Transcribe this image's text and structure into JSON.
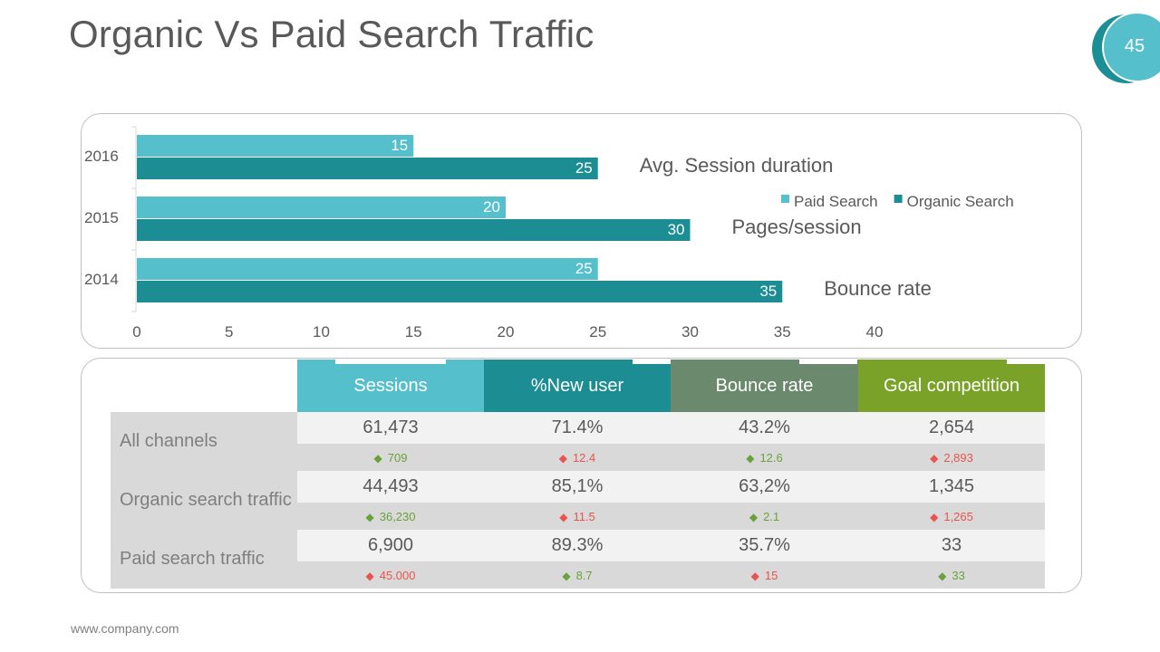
{
  "slide": {
    "title": "Organic Vs Paid Search Traffic",
    "page_number": "45",
    "footer": "www.company.com",
    "colors": {
      "paid": "#55c0cc",
      "organic": "#1c8e93",
      "badge_outer": "#1b8f95",
      "badge_inner": "#55c0cc"
    }
  },
  "chart_data": {
    "type": "bar",
    "orientation": "horizontal",
    "categories": [
      "2016",
      "2015",
      "2014"
    ],
    "series": [
      {
        "name": "Paid Search",
        "values": [
          15,
          20,
          25
        ],
        "color": "#55c0cc"
      },
      {
        "name": "Organic Search",
        "values": [
          25,
          30,
          35
        ],
        "color": "#1c8e93"
      }
    ],
    "xlim": [
      0,
      40
    ],
    "xticks": [
      0,
      5,
      10,
      15,
      20,
      25,
      30,
      35,
      40
    ],
    "annotations": [
      "Avg. Session duration",
      "Pages/session",
      "Bounce rate"
    ],
    "legend": "top-right",
    "grid": false
  },
  "table": {
    "headers": [
      {
        "label": "Sessions",
        "color": "#55c0cc"
      },
      {
        "label": "%New user",
        "color": "#1c8e93"
      },
      {
        "label": "Bounce rate",
        "color": "#6b8a6d"
      },
      {
        "label": "Goal competition",
        "color": "#7aa229"
      }
    ],
    "rows": [
      {
        "label": "All channels",
        "values": [
          "61,473",
          "71.4%",
          "43.2%",
          "2,654"
        ],
        "deltas": [
          {
            "text": "709",
            "dir": "up"
          },
          {
            "text": "12.4",
            "dir": "down"
          },
          {
            "text": "12.6",
            "dir": "up"
          },
          {
            "text": "2,893",
            "dir": "down"
          }
        ]
      },
      {
        "label": "Organic search traffic",
        "values": [
          "44,493",
          "85,1%",
          "63,2%",
          "1,345"
        ],
        "deltas": [
          {
            "text": "36,230",
            "dir": "up"
          },
          {
            "text": "11.5",
            "dir": "down"
          },
          {
            "text": "2.1",
            "dir": "up"
          },
          {
            "text": "1,265",
            "dir": "down"
          }
        ]
      },
      {
        "label": "Paid search traffic",
        "values": [
          "6,900",
          "89.3%",
          "35.7%",
          "33"
        ],
        "deltas": [
          {
            "text": "45.000",
            "dir": "down"
          },
          {
            "text": "8.7",
            "dir": "up"
          },
          {
            "text": "15",
            "dir": "down"
          },
          {
            "text": "33",
            "dir": "up"
          }
        ]
      }
    ]
  }
}
